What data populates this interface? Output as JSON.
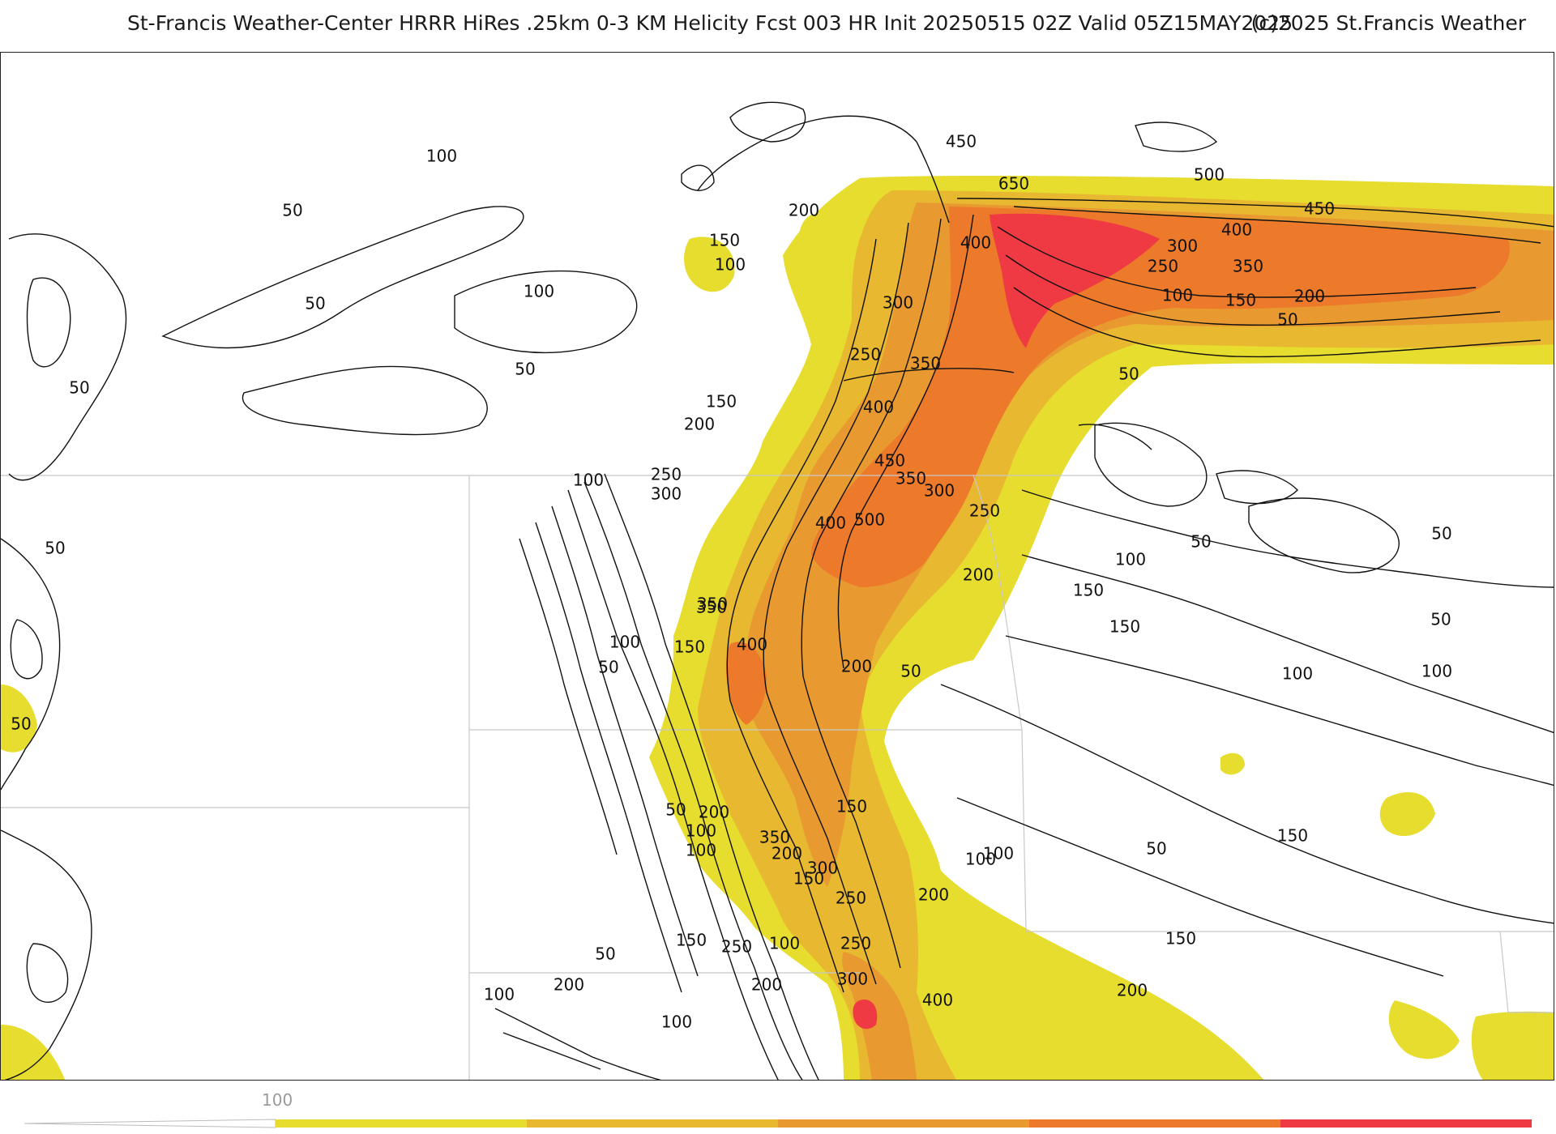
{
  "header": {
    "title": "St-Francis Weather-Center HRRR HiRes .25km 0-3 KM Helicity Fcst 003 HR Init 20250515 02Z  Valid 05Z15MAY2025",
    "copyright": "(c)2025 St.Francis Weather"
  },
  "colors": {
    "band_150": "#e6dd2e",
    "band_250": "#e8b830",
    "band_350": "#e89a30",
    "band_450": "#ec7a2a",
    "band_600": "#ef3a43",
    "band_750": "#e8147a",
    "contour": "#111111",
    "boundary": "#c8c8c8"
  },
  "contour_labels": [
    {
      "text": "100"
    },
    {
      "text": "50"
    },
    {
      "text": "50"
    },
    {
      "text": "50"
    },
    {
      "text": "100"
    },
    {
      "text": "50"
    },
    {
      "text": "150"
    },
    {
      "text": "100"
    },
    {
      "text": "200"
    },
    {
      "text": "300"
    },
    {
      "text": "250"
    },
    {
      "text": "350"
    },
    {
      "text": "150"
    },
    {
      "text": "200"
    },
    {
      "text": "400"
    },
    {
      "text": "450"
    },
    {
      "text": "650"
    },
    {
      "text": "400"
    },
    {
      "text": "500"
    },
    {
      "text": "450"
    },
    {
      "text": "400"
    },
    {
      "text": "300"
    },
    {
      "text": "250"
    },
    {
      "text": "350"
    },
    {
      "text": "100"
    },
    {
      "text": "150"
    },
    {
      "text": "200"
    },
    {
      "text": "50"
    },
    {
      "text": "50"
    },
    {
      "text": "450"
    },
    {
      "text": "350"
    },
    {
      "text": "300"
    },
    {
      "text": "250"
    },
    {
      "text": "400"
    },
    {
      "text": "500"
    },
    {
      "text": "100"
    },
    {
      "text": "250"
    },
    {
      "text": "300"
    },
    {
      "text": "350"
    },
    {
      "text": "200"
    },
    {
      "text": "50"
    },
    {
      "text": "100"
    },
    {
      "text": "150"
    },
    {
      "text": "150"
    },
    {
      "text": "350"
    },
    {
      "text": "400"
    },
    {
      "text": "100"
    },
    {
      "text": "150"
    },
    {
      "text": "50"
    },
    {
      "text": "200"
    },
    {
      "text": "50"
    },
    {
      "text": "50"
    },
    {
      "text": "100"
    },
    {
      "text": "50"
    },
    {
      "text": "100"
    },
    {
      "text": "50"
    },
    {
      "text": "50"
    },
    {
      "text": "200"
    },
    {
      "text": "100"
    },
    {
      "text": "350"
    },
    {
      "text": "200"
    },
    {
      "text": "300"
    },
    {
      "text": "150"
    },
    {
      "text": "150"
    },
    {
      "text": "250"
    },
    {
      "text": "100"
    },
    {
      "text": "200"
    },
    {
      "text": "50"
    },
    {
      "text": "100"
    },
    {
      "text": "100"
    },
    {
      "text": "150"
    },
    {
      "text": "50"
    },
    {
      "text": "150"
    },
    {
      "text": "250"
    },
    {
      "text": "100"
    },
    {
      "text": "250"
    },
    {
      "text": "50"
    },
    {
      "text": "200"
    },
    {
      "text": "300"
    },
    {
      "text": "400"
    },
    {
      "text": "100"
    },
    {
      "text": "200"
    },
    {
      "text": "150"
    },
    {
      "text": "200"
    },
    {
      "text": "100"
    }
  ],
  "colorbar": {
    "label": "100",
    "segments": [
      {
        "color": "#e6dd2e"
      },
      {
        "color": "#e8b830"
      },
      {
        "color": "#e89a30"
      },
      {
        "color": "#ec7a2a"
      },
      {
        "color": "#ef3a43"
      },
      {
        "color": "#e8147a"
      }
    ]
  }
}
